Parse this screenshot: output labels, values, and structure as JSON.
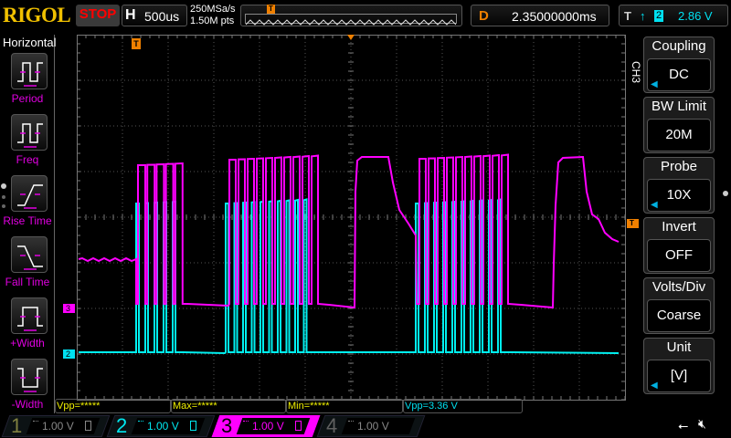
{
  "header": {
    "logo": "RIGOL",
    "run_state": "STOP",
    "horizontal": {
      "key": "H",
      "timebase": "500us"
    },
    "sample_rate": "250MSa/s",
    "memory_depth": "1.50M pts",
    "delay": {
      "key": "D",
      "value": "2.35000000ms"
    },
    "trigger": {
      "key": "T",
      "edge_icon": "rising-edge-icon",
      "source": "2",
      "level": "2.86 V"
    }
  },
  "left_menu": {
    "title": "Horizontal",
    "items": [
      {
        "label": "Period",
        "icon": "period-icon"
      },
      {
        "label": "Freq",
        "icon": "frequency-icon"
      },
      {
        "label": "Rise Time",
        "icon": "rise-time-icon"
      },
      {
        "label": "Fall Time",
        "icon": "fall-time-icon"
      },
      {
        "label": "+Width",
        "icon": "positive-width-icon"
      },
      {
        "label": "-Width",
        "icon": "negative-width-icon"
      }
    ]
  },
  "right_menu": {
    "channel": "CH3",
    "items": [
      {
        "title": "Coupling",
        "value": "DC"
      },
      {
        "title": "BW Limit",
        "value": "20M"
      },
      {
        "title": "Probe",
        "value": "10X"
      },
      {
        "title": "Invert",
        "value": "OFF"
      },
      {
        "title": "Volts/Div",
        "value": "Coarse"
      },
      {
        "title": "Unit",
        "value": "[V]"
      }
    ]
  },
  "markers": {
    "trigger": "T",
    "ch3": "3",
    "ch2": "2"
  },
  "measurements": [
    {
      "text": "Vpp=*****",
      "color": "#f0f000"
    },
    {
      "text": "Max=*****",
      "color": "#f0f000"
    },
    {
      "text": "Min=*****",
      "color": "#f0f000"
    },
    {
      "text": "Vpp=3.36 V",
      "color": "#00e0f0"
    }
  ],
  "channels": [
    {
      "num": "1",
      "scale": "1.00 V",
      "color": "#808040",
      "active": false
    },
    {
      "num": "2",
      "scale": "1.00 V",
      "color": "#00e8f0",
      "active": true
    },
    {
      "num": "3",
      "scale": "1.00 V",
      "color": "#ff00ff",
      "active": true,
      "selected": true
    },
    {
      "num": "4",
      "scale": "1.00 V",
      "color": "#606060",
      "active": false
    }
  ],
  "colors": {
    "ch2": "#00f0f0",
    "ch3": "#ff00ff",
    "trigger": "#f08000",
    "logo": "#f0c000",
    "stop": "#ff0000"
  }
}
